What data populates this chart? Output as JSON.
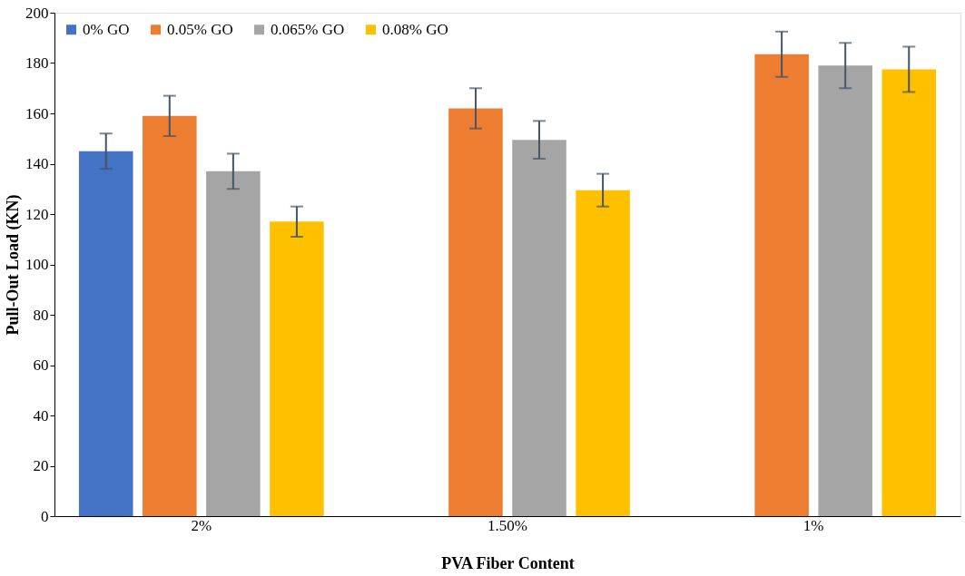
{
  "chart_data": {
    "type": "bar",
    "xlabel": "PVA Fiber Content",
    "ylabel": "Pull-Out Load (KN)",
    "categories": [
      "2%",
      "1.50%",
      "1%"
    ],
    "series": [
      {
        "name": "0% GO",
        "color": "#4472c4",
        "values": [
          145,
          null,
          null
        ],
        "errors": [
          7,
          null,
          null
        ]
      },
      {
        "name": "0.05% GO",
        "color": "#ed7d31",
        "values": [
          159,
          162,
          183.5
        ],
        "errors": [
          8,
          8,
          9
        ]
      },
      {
        "name": "0.065% GO",
        "color": "#a5a5a5",
        "values": [
          137,
          149.5,
          179
        ],
        "errors": [
          7,
          7.5,
          9
        ]
      },
      {
        "name": "0.08% GO",
        "color": "#ffc000",
        "values": [
          117,
          129.5,
          177.5
        ],
        "errors": [
          6,
          6.5,
          9
        ]
      }
    ],
    "ylim": [
      0,
      200
    ],
    "yticks": [
      0,
      20,
      40,
      60,
      80,
      100,
      120,
      140,
      160,
      180,
      200
    ],
    "grid": false,
    "legend": "top left"
  }
}
